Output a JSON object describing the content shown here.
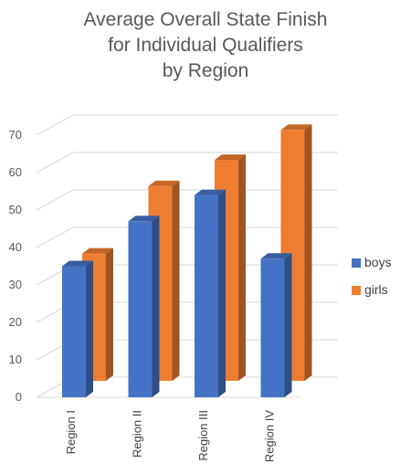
{
  "chart_data": {
    "type": "bar",
    "title": [
      "Average Overall State Finish",
      "for Individual Qualifiers",
      "by Region"
    ],
    "categories": [
      "Region I",
      "Region II",
      "Region III",
      "Region IV"
    ],
    "series": [
      {
        "name": "boys",
        "values": [
          35,
          47,
          54,
          37
        ],
        "color": "#4472C4"
      },
      {
        "name": "girls",
        "values": [
          34,
          52,
          59,
          67
        ],
        "color": "#ED7D31"
      }
    ],
    "ylim": [
      0,
      70
    ],
    "yticks": [
      0,
      10,
      20,
      30,
      40,
      50,
      60,
      70
    ],
    "grid": true,
    "legend": "right",
    "xlabel": "",
    "ylabel": ""
  }
}
